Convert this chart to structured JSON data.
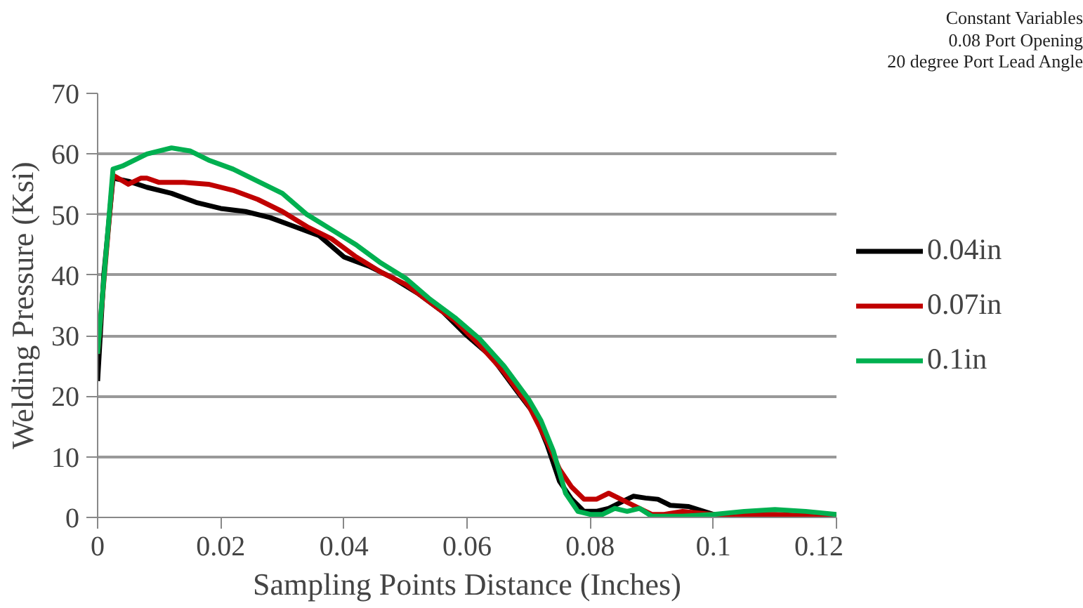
{
  "chart_data": {
    "type": "line",
    "xlabel": "Sampling Points Distance (Inches)",
    "ylabel": "Welding Pressure (Ksi)",
    "annotations": [
      "Constant Variables\n0.08 Port Opening\n20 degree Port Lead Angle"
    ],
    "xlim": [
      0,
      0.12
    ],
    "xticks": [
      0,
      0.02,
      0.04,
      0.06,
      0.08,
      0.1,
      0.12
    ],
    "ylim": [
      0,
      70
    ],
    "yticks": [
      0,
      10,
      20,
      30,
      40,
      50,
      60,
      70
    ],
    "grid": "y",
    "legend": "right",
    "marker": "none",
    "line_style": "solid",
    "series": [
      {
        "name": "0.04in",
        "color": "#000000",
        "x": [
          0,
          0.001,
          0.0025,
          0.005,
          0.008,
          0.012,
          0.016,
          0.02,
          0.024,
          0.028,
          0.032,
          0.036,
          0.04,
          0.044,
          0.048,
          0.052,
          0.056,
          0.06,
          0.064,
          0.068,
          0.071,
          0.073,
          0.075,
          0.077,
          0.079,
          0.081,
          0.083,
          0.085,
          0.087,
          0.089,
          0.091,
          0.093,
          0.096,
          0.1,
          0.105,
          0.11,
          0.115,
          0.12
        ],
        "values": [
          22.5,
          40,
          56,
          55.5,
          54.5,
          53.5,
          52,
          51,
          50.5,
          49.5,
          48,
          46.5,
          43,
          41.5,
          39.5,
          37,
          34,
          30,
          26.5,
          21,
          17,
          12,
          6,
          3,
          1,
          1,
          1.5,
          2.5,
          3.5,
          3.2,
          3,
          2,
          1.8,
          0.5,
          0.5,
          0.3,
          0.2,
          0.3
        ]
      },
      {
        "name": "0.07in",
        "color": "#c00000",
        "x": [
          0,
          0.0025,
          0.005,
          0.007,
          0.008,
          0.01,
          0.014,
          0.018,
          0.022,
          0.026,
          0.03,
          0.034,
          0.038,
          0.042,
          0.046,
          0.05,
          0.054,
          0.058,
          0.062,
          0.066,
          0.07,
          0.073,
          0.075,
          0.077,
          0.079,
          0.081,
          0.083,
          0.085,
          0.088,
          0.09,
          0.092,
          0.095,
          0.1,
          0.105,
          0.11,
          0.115,
          0.12
        ],
        "values": [
          27,
          56.5,
          55,
          56,
          56,
          55.3,
          55.3,
          55,
          54,
          52.5,
          50.5,
          48,
          46,
          43,
          40.5,
          38.5,
          35.5,
          32.5,
          28.5,
          24,
          18.5,
          12.5,
          8,
          5,
          3,
          3,
          4,
          3,
          1.5,
          0.5,
          0.5,
          1,
          0.5,
          0.5,
          0.5,
          0.3,
          0.2
        ]
      },
      {
        "name": "0.1in",
        "color": "#00b050",
        "x": [
          0,
          0.0025,
          0.004,
          0.008,
          0.012,
          0.015,
          0.018,
          0.022,
          0.026,
          0.03,
          0.034,
          0.038,
          0.042,
          0.046,
          0.05,
          0.054,
          0.058,
          0.062,
          0.066,
          0.07,
          0.072,
          0.074,
          0.076,
          0.078,
          0.08,
          0.082,
          0.084,
          0.086,
          0.088,
          0.09,
          0.095,
          0.1,
          0.105,
          0.11,
          0.115,
          0.12
        ],
        "values": [
          27,
          57.5,
          58,
          60,
          61,
          60.5,
          59,
          57.5,
          55.5,
          53.5,
          50,
          47.5,
          45,
          42,
          39.5,
          36,
          33,
          29.5,
          25,
          19.5,
          16,
          11,
          4,
          1,
          0.5,
          0.5,
          1.5,
          1,
          1.5,
          0.2,
          0.2,
          0.5,
          1,
          1.3,
          1,
          0.5
        ]
      }
    ]
  }
}
